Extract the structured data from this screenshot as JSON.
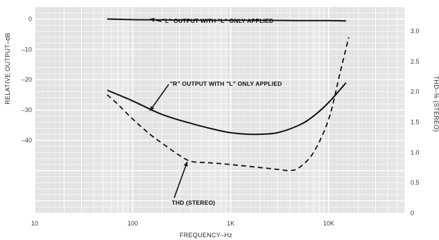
{
  "chart_data": {
    "type": "line",
    "x_scale": "log",
    "xlabel": "FREQUENCY–Hz",
    "ylabel_left": "RELATIVE OUTPUT–dB",
    "ylabel_right": "THD–% (STEREO)",
    "xlim": [
      10,
      60000
    ],
    "ylim_left": [
      -64,
      4
    ],
    "ylim_right": [
      0,
      3.4
    ],
    "x_ticks": [
      10,
      100,
      1000,
      10000
    ],
    "x_tick_labels": [
      "10",
      "100",
      "1K",
      "10K"
    ],
    "y_left_ticks": [
      0,
      -10,
      -20,
      -30,
      -40
    ],
    "y_left_tick_labels": [
      "0",
      "–10",
      "–20",
      "–30",
      "–40"
    ],
    "y_right_ticks": [
      3.0,
      2.5,
      2.0,
      1.5,
      1.0,
      0.5,
      0
    ],
    "y_right_tick_labels": [
      "3.0",
      "2.5",
      "2.0",
      "1.5",
      "1.0",
      "0.5",
      "0"
    ],
    "grid": true,
    "colors": {
      "background": "#e3e3e3",
      "grid": "#ffffff",
      "curves": "#111111",
      "text": "#333333"
    },
    "series": [
      {
        "name": "\"L\" OUTPUT WITH \"L\" ONLY APPLIED",
        "axis": "left",
        "style": "solid",
        "x": [
          55,
          100,
          200,
          500,
          1000,
          2000,
          5000,
          10000,
          15000
        ],
        "y": [
          0,
          -0.2,
          -0.3,
          -0.4,
          -0.4,
          -0.4,
          -0.5,
          -0.5,
          -0.6
        ]
      },
      {
        "name": "\"R\" OUTPUT WITH \"L\" ONLY APPLIED",
        "axis": "left",
        "style": "solid",
        "x": [
          55,
          100,
          200,
          400,
          700,
          1000,
          1500,
          2000,
          3000,
          5000,
          7000,
          10000,
          15000
        ],
        "y": [
          -23.5,
          -27,
          -31.5,
          -34.5,
          -36.5,
          -37.5,
          -38,
          -38,
          -37.5,
          -35,
          -32,
          -27.5,
          -21
        ]
      },
      {
        "name": "THD",
        "axis": "right",
        "style": "dashed",
        "x": [
          55,
          70,
          100,
          150,
          200,
          300,
          400,
          600,
          1000,
          2000,
          3000,
          4000,
          5000,
          7000,
          10000,
          13000,
          16000
        ],
        "y": [
          1.95,
          1.8,
          1.55,
          1.3,
          1.15,
          0.95,
          0.85,
          0.83,
          0.8,
          0.75,
          0.72,
          0.7,
          0.75,
          1.0,
          1.55,
          2.3,
          2.9
        ]
      }
    ],
    "annotations": [
      {
        "text": "\"L\" OUTPUT WITH \"L\" ONLY APPLIED"
      },
      {
        "text": "\"R\" OUTPUT WITH \"L\" ONLY APPLIED"
      },
      {
        "text": "THD (STEREO)"
      }
    ]
  }
}
